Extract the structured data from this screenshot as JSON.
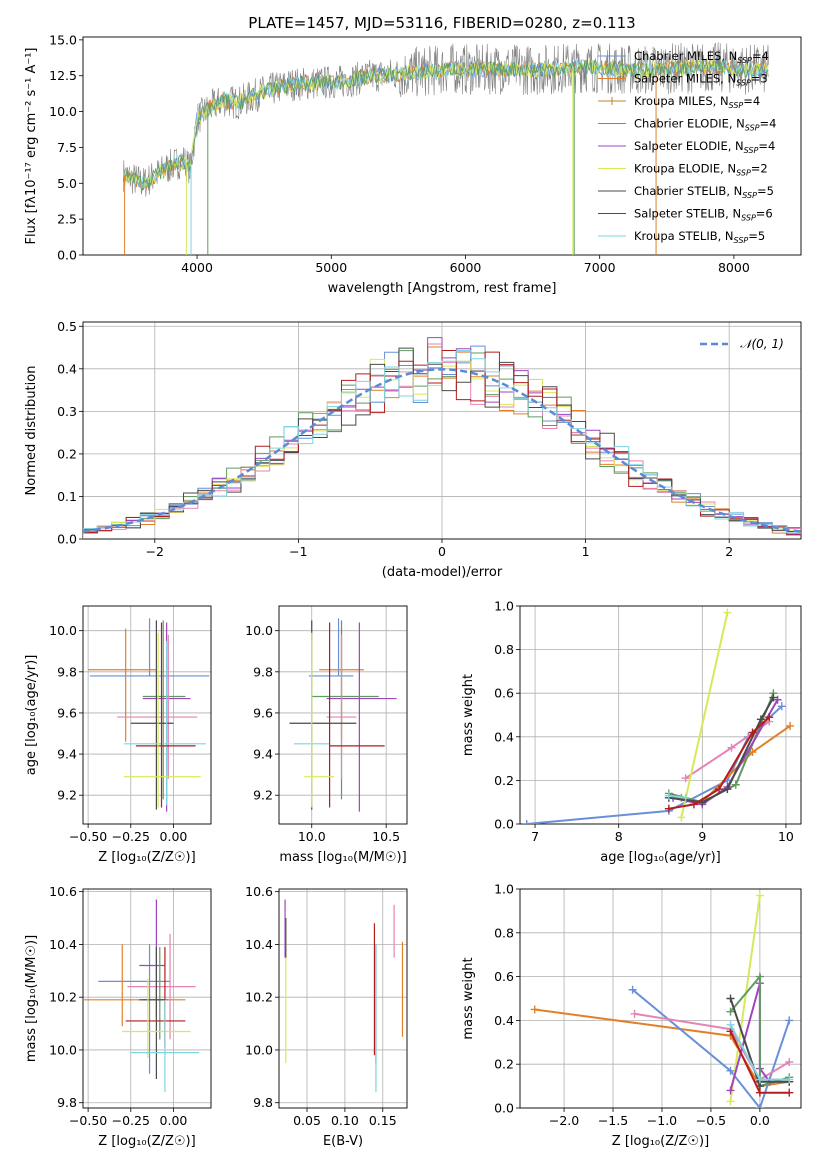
{
  "series_styles": [
    {
      "name": "Chabrier MILES",
      "nssp": "4",
      "color": "#6a8fd9"
    },
    {
      "name": "Salpeter MILES",
      "nssp": "3",
      "color": "#e2802a"
    },
    {
      "name": "Kroupa MILES",
      "nssp": "4",
      "color": "#b8862b"
    },
    {
      "name": "Chabrier ELODIE",
      "nssp": "4",
      "color": "#5f9a5f"
    },
    {
      "name": "Salpeter ELODIE",
      "nssp": "4",
      "color": "#a044c0"
    },
    {
      "name": "Kroupa ELODIE",
      "nssp": "2",
      "color": "#d9e85a"
    },
    {
      "name": "Chabrier STELIB",
      "nssp": "5",
      "color": "#4a4a4a"
    },
    {
      "name": "Salpeter STELIB",
      "nssp": "6",
      "color": "#b21e1e"
    },
    {
      "name": "Kroupa STELIB",
      "nssp": "5",
      "color": "#7ed4e0"
    }
  ],
  "extra_colors": {
    "pink": "#e683b5",
    "observed": "#7f7f7f",
    "normal": "#5b8bd6"
  },
  "chart_data": [
    {
      "id": "spectrum",
      "type": "line",
      "title": "PLATE=1457, MJD=53116, FIBERID=0280, z=0.113",
      "xlabel": "wavelength [Angstrom, rest frame]",
      "ylabel": "Flux [fλ10⁻¹⁷ erg cm⁻² s⁻¹ A⁻¹]",
      "xlim": [
        3150,
        8500
      ],
      "ylim": [
        0,
        15.2
      ],
      "xticks": [
        "4000",
        "5000",
        "6000",
        "7000",
        "8000"
      ],
      "yticks": [
        "0.0",
        "2.5",
        "5.0",
        "7.5",
        "10.0",
        "12.5",
        "15.0"
      ],
      "spectrum_points": {
        "x": [
          3450,
          3600,
          3700,
          3800,
          3900,
          3950,
          4000,
          4100,
          4200,
          4300,
          4500,
          4700,
          4900,
          5100,
          5300,
          5500,
          5700,
          5900,
          6100,
          6300,
          6500,
          6700,
          6900,
          7100,
          7300,
          7500,
          7800,
          8000,
          8250
        ],
        "y": [
          5.6,
          5.0,
          5.6,
          6.2,
          6.6,
          6.0,
          9.5,
          10.3,
          10.8,
          10.6,
          11.4,
          11.9,
          12.0,
          12.1,
          12.5,
          12.6,
          12.8,
          13.0,
          12.9,
          13.0,
          12.9,
          13.0,
          13.1,
          13.0,
          12.9,
          13.0,
          13.1,
          13.0,
          12.9
        ]
      },
      "legend_loc": "upper right"
    },
    {
      "id": "residuals",
      "type": "histogram",
      "xlabel": "(data-model)/error",
      "ylabel": "Normed distribution",
      "xlim": [
        -2.5,
        2.5
      ],
      "ylim": [
        0,
        0.51
      ],
      "xticks": [
        "−2",
        "−1",
        "0",
        "1",
        "2"
      ],
      "yticks": [
        "0.0",
        "0.1",
        "0.2",
        "0.3",
        "0.4",
        "0.5"
      ],
      "normal_label": "𝒩(0, 1)",
      "grid": true
    },
    {
      "id": "age_vs_Z",
      "type": "errorbar",
      "xlabel": "Z [log₁₀(Z/Z☉)]",
      "ylabel": "age  [log₁₀(age/yr)]",
      "xlim": [
        -0.53,
        0.22
      ],
      "ylim": [
        9.06,
        10.12
      ],
      "xticks": [
        "−0.50",
        "−0.25",
        "0.00"
      ],
      "yticks": [
        "9.2",
        "9.4",
        "9.6",
        "9.8",
        "10.0"
      ],
      "points": [
        {
          "c": 0,
          "x": -0.14,
          "y": 9.78,
          "xerr": [
            0.35,
            0.35
          ],
          "yerr": [
            0.0,
            0.28
          ]
        },
        {
          "c": 1,
          "x": -0.28,
          "y": 9.81,
          "xerr": [
            0.22,
            0.18
          ],
          "yerr": [
            0.35,
            0.2
          ]
        },
        {
          "c": 3,
          "x": -0.06,
          "y": 9.68,
          "xerr": [
            0.12,
            0.13
          ],
          "yerr": [
            0.5,
            0.37
          ]
        },
        {
          "c": 4,
          "x": -0.04,
          "y": 9.67,
          "xerr": [
            0.14,
            0.14
          ],
          "yerr": [
            0.55,
            0.37
          ]
        },
        {
          "c": 9,
          "x": -0.03,
          "y": 9.58,
          "xerr": [
            0.3,
            0.17
          ],
          "yerr": [
            0.3,
            0.4
          ]
        },
        {
          "c": 6,
          "x": -0.1,
          "y": 9.55,
          "xerr": [
            0.15,
            0.1
          ],
          "yerr": [
            0.42,
            0.5
          ]
        },
        {
          "c": 8,
          "x": -0.04,
          "y": 9.45,
          "xerr": [
            0.25,
            0.23
          ],
          "yerr": [
            0.3,
            0.5
          ]
        },
        {
          "c": 7,
          "x": -0.07,
          "y": 9.44,
          "xerr": [
            0.15,
            0.2
          ],
          "yerr": [
            0.3,
            0.6
          ]
        },
        {
          "c": 5,
          "x": -0.09,
          "y": 9.29,
          "xerr": [
            0.2,
            0.25
          ],
          "yerr": [
            0.15,
            0.7
          ]
        }
      ]
    },
    {
      "id": "age_vs_mass",
      "type": "errorbar",
      "xlabel": "mass [log₁₀(M/M☉)]",
      "ylabel": "",
      "xlim": [
        9.78,
        10.64
      ],
      "ylim": [
        9.06,
        10.12
      ],
      "xticks": [
        "10.0",
        "10.5"
      ],
      "yticks": [
        "9.2",
        "9.4",
        "9.6",
        "9.8",
        "10.0"
      ],
      "points": [
        {
          "c": 0,
          "x": 10.18,
          "y": 9.78,
          "xerr": [
            0.2,
            0.1
          ],
          "yerr": [
            0.0,
            0.28
          ]
        },
        {
          "c": 1,
          "x": 10.2,
          "y": 9.81,
          "xerr": [
            0.15,
            0.15
          ],
          "yerr": [
            0.35,
            0.2
          ]
        },
        {
          "c": 4,
          "x": 10.32,
          "y": 9.67,
          "xerr": [
            0.22,
            0.25
          ],
          "yerr": [
            0.55,
            0.37
          ]
        },
        {
          "c": 3,
          "x": 10.2,
          "y": 9.68,
          "xerr": [
            0.2,
            0.25
          ],
          "yerr": [
            0.5,
            0.37
          ]
        },
        {
          "c": 9,
          "x": 10.2,
          "y": 9.58,
          "xerr": [
            0.1,
            0.1
          ],
          "yerr": [
            0.3,
            0.4
          ]
        },
        {
          "c": 6,
          "x": 10.0,
          "y": 9.55,
          "xerr": [
            0.15,
            0.3
          ],
          "yerr": [
            0.42,
            0.5
          ]
        },
        {
          "c": 8,
          "x": 10.0,
          "y": 9.45,
          "xerr": [
            0.12,
            0.12
          ],
          "yerr": [
            0.3,
            0.5
          ]
        },
        {
          "c": 7,
          "x": 10.12,
          "y": 9.44,
          "xerr": [
            0.0,
            0.37
          ],
          "yerr": [
            0.3,
            0.6
          ]
        },
        {
          "c": 5,
          "x": 10.0,
          "y": 9.29,
          "xerr": [
            0.05,
            0.15
          ],
          "yerr": [
            0.15,
            0.7
          ]
        }
      ]
    },
    {
      "id": "weight_vs_age",
      "type": "line",
      "xlabel": "age  [log₁₀(age/yr)]",
      "ylabel": "mass weight",
      "xlim": [
        6.82,
        10.18
      ],
      "ylim": [
        0,
        1.0
      ],
      "xticks": [
        "7",
        "8",
        "9",
        "10"
      ],
      "yticks": [
        "0.0",
        "0.2",
        "0.4",
        "0.6",
        "0.8",
        "1.0"
      ],
      "series": [
        {
          "c": 0,
          "x": [
            6.9,
            8.6,
            9.3,
            9.55,
            9.95
          ],
          "y": [
            0.0,
            0.06,
            0.2,
            0.4,
            0.54
          ]
        },
        {
          "c": 1,
          "x": 8.75,
          "y": null,
          "xs": [
            8.75,
            9.0,
            9.6,
            10.05
          ],
          "ys": [
            0.12,
            0.1,
            0.33,
            0.45
          ]
        },
        {
          "c": 9,
          "xs": [
            8.8,
            9.35,
            9.8
          ],
          "ys": [
            0.21,
            0.35,
            0.47
          ]
        },
        {
          "c": 3,
          "xs": [
            8.6,
            9.0,
            9.4,
            9.85
          ],
          "ys": [
            0.14,
            0.1,
            0.18,
            0.6
          ]
        },
        {
          "c": 4,
          "xs": [
            8.65,
            9.0,
            9.3,
            9.9
          ],
          "ys": [
            0.12,
            0.09,
            0.17,
            0.57
          ]
        },
        {
          "c": 5,
          "xs": [
            8.75,
            9.3
          ],
          "ys": [
            0.03,
            0.97
          ]
        },
        {
          "c": 6,
          "xs": [
            8.6,
            9.0,
            9.3,
            9.7,
            9.85
          ],
          "ys": [
            0.12,
            0.1,
            0.16,
            0.48,
            0.58
          ]
        },
        {
          "c": 7,
          "xs": [
            8.6,
            8.9,
            9.2,
            9.6,
            9.8
          ],
          "ys": [
            0.07,
            0.09,
            0.16,
            0.42,
            0.49
          ]
        },
        {
          "c": 8,
          "xs": [
            8.6,
            8.8
          ],
          "ys": [
            0.13,
            0.12
          ]
        }
      ]
    },
    {
      "id": "mass_vs_Z",
      "type": "errorbar",
      "xlabel": "Z [log₁₀(Z/Z☉)]",
      "ylabel": "mass [log₁₀(M/M☉)]",
      "xlim": [
        -0.53,
        0.22
      ],
      "ylim": [
        9.78,
        10.61
      ],
      "xticks": [
        "−0.50",
        "−0.25",
        "0.00"
      ],
      "yticks": [
        "9.8",
        "10.0",
        "10.2",
        "10.4",
        "10.6"
      ],
      "points": [
        {
          "c": 0,
          "x": -0.14,
          "y": 10.26,
          "xerr": [
            0.3,
            0.12
          ],
          "yerr": [
            0.35,
            0.14
          ]
        },
        {
          "c": 1,
          "x": -0.3,
          "y": 10.19,
          "xerr": [
            0.23,
            0.37
          ],
          "yerr": [
            0.1,
            0.21
          ]
        },
        {
          "c": 4,
          "x": -0.1,
          "y": 10.32,
          "xerr": [
            0.1,
            0.05
          ],
          "yerr": [
            0.2,
            0.25
          ]
        },
        {
          "c": 9,
          "x": -0.02,
          "y": 10.24,
          "xerr": [
            0.25,
            0.15
          ],
          "yerr": [
            0.2,
            0.2
          ]
        },
        {
          "c": 3,
          "x": -0.08,
          "y": 10.19,
          "xerr": [
            0.1,
            0.05
          ],
          "yerr": [
            0.15,
            0.2
          ]
        },
        {
          "c": 6,
          "x": -0.1,
          "y": 10.19,
          "xerr": [
            0.1,
            0.05
          ],
          "yerr": [
            0.3,
            0.2
          ]
        },
        {
          "c": 7,
          "x": -0.05,
          "y": 10.11,
          "xerr": [
            0.23,
            0.12
          ],
          "yerr": [
            0.1,
            0.28
          ]
        },
        {
          "c": 5,
          "x": -0.15,
          "y": 10.07,
          "xerr": [
            0.15,
            0.25
          ],
          "yerr": [
            0.1,
            0.2
          ]
        },
        {
          "c": 8,
          "x": -0.05,
          "y": 9.99,
          "xerr": [
            0.2,
            0.2
          ],
          "yerr": [
            0.15,
            0.2
          ]
        }
      ]
    },
    {
      "id": "mass_vs_ebv",
      "type": "errorbar",
      "xlabel": "E(B-V)",
      "ylabel": "",
      "xlim": [
        0.013,
        0.182
      ],
      "ylim": [
        9.78,
        10.61
      ],
      "xticks": [
        "0.05",
        "0.10",
        "0.15"
      ],
      "yticks": [
        "9.8",
        "10.0",
        "10.2",
        "10.4",
        "10.6"
      ],
      "points": [
        {
          "c": 4,
          "x": 0.021,
          "y": 10.4,
          "xerr": [
            0,
            0
          ],
          "yerr": [
            0.05,
            0.17
          ]
        },
        {
          "c": 5,
          "x": 0.022,
          "y": 10.2,
          "xerr": [
            0,
            0
          ],
          "yerr": [
            0.25,
            0.3
          ]
        },
        {
          "c": 6,
          "x": 0.022,
          "y": 10.4,
          "xerr": [
            0,
            0
          ],
          "yerr": [
            0.05,
            0.1
          ]
        },
        {
          "c": 7,
          "x": 0.139,
          "y": 10.23,
          "xerr": [
            0,
            0
          ],
          "yerr": [
            0.25,
            0.25
          ]
        },
        {
          "c": 6,
          "x": 0.141,
          "y": 10.2,
          "xerr": [
            0,
            0
          ],
          "yerr": [
            0.25,
            0.2
          ]
        },
        {
          "c": 8,
          "x": 0.141,
          "y": 10.1,
          "xerr": [
            0,
            0
          ],
          "yerr": [
            0.26,
            0.3
          ]
        },
        {
          "c": 9,
          "x": 0.165,
          "y": 10.45,
          "xerr": [
            0,
            0
          ],
          "yerr": [
            0.1,
            0.1
          ]
        },
        {
          "c": 1,
          "x": 0.176,
          "y": 10.23,
          "xerr": [
            0,
            0
          ],
          "yerr": [
            0.18,
            0.18
          ]
        }
      ]
    },
    {
      "id": "weight_vs_Z",
      "type": "line",
      "xlabel": "Z [log₁₀(Z/Z☉)]",
      "ylabel": "mass weight",
      "xlim": [
        -2.45,
        0.42
      ],
      "ylim": [
        0,
        1.0
      ],
      "xticks": [
        "−2.0",
        "−1.5",
        "−1.0",
        "−0.5",
        "0.0"
      ],
      "yticks": [
        "0.0",
        "0.2",
        "0.4",
        "0.6",
        "0.8",
        "1.0"
      ],
      "series": [
        {
          "c": 1,
          "xs": [
            -2.3,
            -0.3,
            0.0,
            0.3
          ],
          "ys": [
            0.45,
            0.33,
            0.1,
            0.12
          ]
        },
        {
          "c": 0,
          "xs": [
            -1.3,
            -0.3,
            0.0,
            0.3
          ],
          "ys": [
            0.54,
            0.17,
            0.0,
            0.4
          ]
        },
        {
          "c": 9,
          "xs": [
            -1.28,
            -0.3,
            0.0,
            0.3
          ],
          "ys": [
            0.43,
            0.36,
            0.13,
            0.21
          ]
        },
        {
          "c": 5,
          "xs": [
            -0.3,
            0.0
          ],
          "ys": [
            0.03,
            0.97
          ]
        },
        {
          "c": 4,
          "xs": [
            -0.3,
            0.0,
            0.0,
            0.1
          ],
          "ys": [
            0.08,
            0.57,
            0.18,
            0.12
          ]
        },
        {
          "c": 3,
          "xs": [
            -0.3,
            0.0,
            0.0,
            0.3
          ],
          "ys": [
            0.44,
            0.6,
            0.1,
            0.14
          ]
        },
        {
          "c": 6,
          "xs": [
            -0.3,
            0.0,
            0.0,
            0.3
          ],
          "ys": [
            0.5,
            0.1,
            0.12,
            0.12
          ]
        },
        {
          "c": 7,
          "xs": [
            -0.3,
            0.0,
            0.3
          ],
          "ys": [
            0.35,
            0.07,
            0.07
          ]
        },
        {
          "c": 8,
          "xs": [
            -0.3,
            0.0,
            0.3
          ],
          "ys": [
            0.38,
            0.13,
            0.13
          ]
        }
      ]
    }
  ]
}
